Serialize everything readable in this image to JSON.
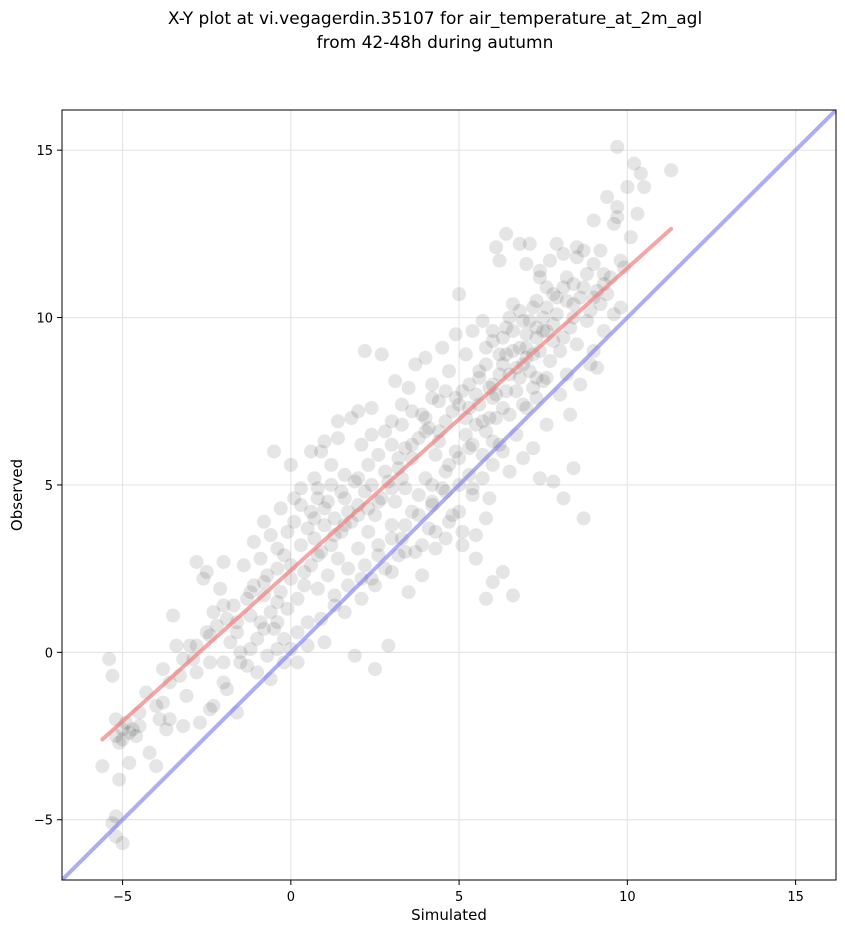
{
  "chart_data": {
    "type": "scatter",
    "title_line1": "X-Y plot at vi.vegagerdin.35107 for air_temperature_at_2m_agl",
    "title_line2": "from 42-48h during autumn",
    "xlabel": "Simulated",
    "ylabel": "Observed",
    "xlim": [
      -6.8,
      16.2
    ],
    "ylim": [
      -6.8,
      16.2
    ],
    "xticks": [
      -5,
      0,
      5,
      10,
      15
    ],
    "yticks": [
      -5,
      0,
      5,
      10,
      15
    ],
    "xtick_labels": [
      "−5",
      "0",
      "5",
      "10",
      "15"
    ],
    "ytick_labels": [
      "−5",
      "0",
      "5",
      "10",
      "15"
    ],
    "grid": true,
    "point_color": "#000000",
    "point_alpha": 0.1,
    "regression_line": {
      "color": "#f08080",
      "x": [
        -5.6,
        11.3
      ],
      "y": [
        -2.6,
        12.65
      ]
    },
    "identity_line": {
      "color": "#7777ee",
      "x": [
        -6.8,
        16.2
      ],
      "y": [
        -6.8,
        16.2
      ]
    },
    "points": [
      [
        -5.6,
        -3.4
      ],
      [
        -5.4,
        -0.2
      ],
      [
        -5.3,
        -0.7
      ],
      [
        -5.2,
        -2.0
      ],
      [
        -5.2,
        -2.5
      ],
      [
        -5.1,
        -2.7
      ],
      [
        -5.0,
        -2.3
      ],
      [
        -5.0,
        -2.6
      ],
      [
        -4.9,
        -2.1
      ],
      [
        -4.8,
        -2.4
      ],
      [
        -4.8,
        -3.3
      ],
      [
        -4.7,
        -2.3
      ],
      [
        -4.6,
        -2.5
      ],
      [
        -4.5,
        -2.2
      ],
      [
        -4.5,
        -1.8
      ],
      [
        -5.1,
        -3.8
      ],
      [
        -5.2,
        -4.9
      ],
      [
        -5.3,
        -5.1
      ],
      [
        -5.2,
        -5.5
      ],
      [
        -5.0,
        -5.7
      ],
      [
        -4.3,
        -1.2
      ],
      [
        -4.2,
        -3.0
      ],
      [
        -4.0,
        -3.4
      ],
      [
        -3.9,
        -2.0
      ],
      [
        -3.8,
        -0.5
      ],
      [
        -3.8,
        -1.5
      ],
      [
        -3.7,
        -2.3
      ],
      [
        -3.6,
        -2.0
      ],
      [
        -3.5,
        1.1
      ],
      [
        -3.4,
        0.2
      ],
      [
        -3.3,
        -0.7
      ],
      [
        -3.2,
        -2.2
      ],
      [
        -3.1,
        -1.3
      ],
      [
        -3.0,
        0.2
      ],
      [
        -2.9,
        -0.2
      ],
      [
        -2.8,
        2.7
      ],
      [
        -2.7,
        -2.1
      ],
      [
        -2.6,
        2.2
      ],
      [
        -2.5,
        2.4
      ],
      [
        -2.5,
        0.6
      ],
      [
        -2.4,
        -0.3
      ],
      [
        -2.3,
        1.2
      ],
      [
        -2.3,
        -1.6
      ],
      [
        -2.2,
        0.8
      ],
      [
        -2.1,
        1.9
      ],
      [
        -2.0,
        -0.9
      ],
      [
        -2.0,
        2.7
      ],
      [
        -1.9,
        1.0
      ],
      [
        -1.9,
        -1.1
      ],
      [
        -1.8,
        0.3
      ],
      [
        -1.7,
        1.4
      ],
      [
        -1.6,
        -1.8
      ],
      [
        -1.5,
        0.0
      ],
      [
        -1.5,
        -0.3
      ],
      [
        -1.4,
        2.6
      ],
      [
        -1.3,
        1.6
      ],
      [
        -1.3,
        -0.4
      ],
      [
        -1.2,
        1.1
      ],
      [
        -1.1,
        2.0
      ],
      [
        -1.1,
        3.3
      ],
      [
        -1.0,
        0.4
      ],
      [
        -1.0,
        -0.6
      ],
      [
        -0.9,
        2.8
      ],
      [
        -0.9,
        0.9
      ],
      [
        -0.8,
        3.9
      ],
      [
        -0.8,
        1.7
      ],
      [
        -0.7,
        2.3
      ],
      [
        -0.7,
        -0.1
      ],
      [
        -0.6,
        3.5
      ],
      [
        -0.6,
        1.2
      ],
      [
        -0.5,
        6.0
      ],
      [
        -0.5,
        0.7
      ],
      [
        -0.4,
        2.5
      ],
      [
        -0.4,
        3.1
      ],
      [
        -0.3,
        1.8
      ],
      [
        -0.3,
        4.3
      ],
      [
        -0.2,
        0.4
      ],
      [
        -0.2,
        2.9
      ],
      [
        -0.1,
        3.6
      ],
      [
        -0.1,
        1.3
      ],
      [
        0.0,
        5.6
      ],
      [
        0.0,
        0.1
      ],
      [
        0.0,
        2.2
      ],
      [
        0.1,
        4.6
      ],
      [
        0.1,
        3.9
      ],
      [
        0.2,
        1.6
      ],
      [
        0.2,
        -0.3
      ],
      [
        0.3,
        3.2
      ],
      [
        0.3,
        4.9
      ],
      [
        0.4,
        2.0
      ],
      [
        0.5,
        3.7
      ],
      [
        0.5,
        0.9
      ],
      [
        0.6,
        4.2
      ],
      [
        0.6,
        2.6
      ],
      [
        0.7,
        5.2
      ],
      [
        0.7,
        3.4
      ],
      [
        0.8,
        1.9
      ],
      [
        0.8,
        4.6
      ],
      [
        0.9,
        6.0
      ],
      [
        0.9,
        3.0
      ],
      [
        1.0,
        0.3
      ],
      [
        1.0,
        3.8
      ],
      [
        1.1,
        2.3
      ],
      [
        1.1,
        4.5
      ],
      [
        1.2,
        5.6
      ],
      [
        1.2,
        3.2
      ],
      [
        1.3,
        1.7
      ],
      [
        1.3,
        4.0
      ],
      [
        1.4,
        6.4
      ],
      [
        1.4,
        2.8
      ],
      [
        1.5,
        4.8
      ],
      [
        1.5,
        3.6
      ],
      [
        1.6,
        5.3
      ],
      [
        1.6,
        1.2
      ],
      [
        1.7,
        4.2
      ],
      [
        1.7,
        2.5
      ],
      [
        1.8,
        3.9
      ],
      [
        1.8,
        7.0
      ],
      [
        1.9,
        5.1
      ],
      [
        1.9,
        -0.1
      ],
      [
        2.0,
        4.4
      ],
      [
        2.0,
        3.1
      ],
      [
        2.1,
        6.2
      ],
      [
        2.1,
        1.6
      ],
      [
        2.2,
        4.8
      ],
      [
        2.2,
        9.0
      ],
      [
        2.3,
        3.6
      ],
      [
        2.3,
        5.6
      ],
      [
        2.4,
        2.2
      ],
      [
        2.4,
        7.3
      ],
      [
        2.5,
        4.1
      ],
      [
        2.5,
        -0.5
      ],
      [
        2.6,
        5.9
      ],
      [
        2.6,
        3.2
      ],
      [
        2.7,
        8.9
      ],
      [
        2.7,
        4.6
      ],
      [
        2.8,
        6.6
      ],
      [
        2.8,
        2.5
      ],
      [
        2.9,
        5.1
      ],
      [
        2.9,
        0.2
      ],
      [
        3.0,
        3.8
      ],
      [
        3.0,
        6.9
      ],
      [
        3.1,
        4.5
      ],
      [
        3.1,
        8.1
      ],
      [
        3.2,
        2.9
      ],
      [
        3.2,
        5.5
      ],
      [
        3.3,
        7.4
      ],
      [
        3.3,
        3.4
      ],
      [
        3.4,
        6.1
      ],
      [
        3.4,
        4.9
      ],
      [
        3.5,
        1.8
      ],
      [
        3.5,
        7.9
      ],
      [
        3.6,
        4.2
      ],
      [
        3.6,
        5.8
      ],
      [
        3.7,
        3.0
      ],
      [
        3.7,
        8.6
      ],
      [
        3.8,
        6.4
      ],
      [
        3.8,
        4.7
      ],
      [
        3.9,
        7.1
      ],
      [
        3.9,
        2.3
      ],
      [
        4.0,
        5.2
      ],
      [
        4.0,
        8.8
      ],
      [
        4.1,
        3.7
      ],
      [
        4.1,
        6.7
      ],
      [
        4.2,
        4.4
      ],
      [
        4.2,
        8.0
      ],
      [
        4.3,
        5.9
      ],
      [
        4.3,
        3.1
      ],
      [
        4.4,
        7.5
      ],
      [
        4.4,
        6.3
      ],
      [
        4.5,
        4.9
      ],
      [
        4.5,
        9.1
      ],
      [
        4.6,
        3.4
      ],
      [
        4.6,
        6.9
      ],
      [
        4.7,
        5.6
      ],
      [
        4.7,
        8.4
      ],
      [
        4.8,
        7.2
      ],
      [
        4.8,
        4.1
      ],
      [
        4.9,
        6.0
      ],
      [
        4.9,
        9.5
      ],
      [
        5.0,
        5.0
      ],
      [
        5.0,
        10.7
      ],
      [
        5.1,
        7.8
      ],
      [
        5.1,
        3.6
      ],
      [
        5.2,
        6.5
      ],
      [
        5.2,
        8.9
      ],
      [
        5.3,
        5.3
      ],
      [
        5.3,
        7.3
      ],
      [
        5.4,
        9.6
      ],
      [
        5.4,
        4.7
      ],
      [
        5.5,
        6.8
      ],
      [
        5.5,
        2.8
      ],
      [
        5.6,
        8.2
      ],
      [
        5.6,
        7.4
      ],
      [
        5.7,
        5.9
      ],
      [
        5.7,
        9.9
      ],
      [
        5.8,
        1.6
      ],
      [
        5.8,
        8.6
      ],
      [
        5.9,
        7.0
      ],
      [
        5.9,
        4.6
      ],
      [
        6.0,
        9.3
      ],
      [
        6.0,
        2.1
      ],
      [
        6.1,
        7.7
      ],
      [
        6.1,
        12.1
      ],
      [
        6.2,
        6.2
      ],
      [
        6.2,
        8.9
      ],
      [
        6.3,
        2.4
      ],
      [
        6.3,
        7.3
      ],
      [
        6.4,
        12.5
      ],
      [
        6.4,
        9.7
      ],
      [
        6.5,
        5.4
      ],
      [
        6.5,
        8.3
      ],
      [
        6.6,
        1.7
      ],
      [
        6.6,
        10.4
      ],
      [
        6.7,
        7.8
      ],
      [
        6.7,
        6.5
      ],
      [
        6.8,
        12.2
      ],
      [
        6.8,
        9.1
      ],
      [
        6.9,
        5.8
      ],
      [
        6.9,
        8.6
      ],
      [
        7.0,
        11.6
      ],
      [
        7.0,
        7.3
      ],
      [
        7.1,
        12.2
      ],
      [
        7.1,
        9.9
      ],
      [
        7.2,
        6.1
      ],
      [
        7.2,
        8.9
      ],
      [
        7.3,
        10.5
      ],
      [
        7.3,
        7.6
      ],
      [
        7.4,
        11.4
      ],
      [
        7.4,
        5.2
      ],
      [
        7.5,
        9.6
      ],
      [
        7.5,
        8.1
      ],
      [
        7.6,
        10.9
      ],
      [
        7.6,
        6.8
      ],
      [
        7.7,
        11.7
      ],
      [
        7.7,
        8.7
      ],
      [
        7.8,
        9.3
      ],
      [
        7.8,
        5.1
      ],
      [
        7.9,
        12.2
      ],
      [
        7.9,
        10.1
      ],
      [
        8.0,
        7.7
      ],
      [
        8.0,
        9.0
      ],
      [
        8.1,
        11.9
      ],
      [
        8.1,
        4.6
      ],
      [
        8.2,
        10.5
      ],
      [
        8.2,
        8.3
      ],
      [
        8.3,
        9.7
      ],
      [
        8.3,
        7.1
      ],
      [
        8.4,
        11.0
      ],
      [
        8.4,
        5.5
      ],
      [
        8.5,
        9.2
      ],
      [
        8.5,
        11.8
      ],
      [
        8.6,
        8.0
      ],
      [
        8.6,
        10.6
      ],
      [
        8.7,
        12.0
      ],
      [
        8.7,
        4.0
      ],
      [
        8.8,
        9.9
      ],
      [
        8.8,
        11.3
      ],
      [
        8.9,
        8.6
      ],
      [
        8.9,
        10.2
      ],
      [
        9.0,
        11.6
      ],
      [
        9.0,
        9.0
      ],
      [
        9.1,
        10.8
      ],
      [
        9.1,
        8.5
      ],
      [
        9.2,
        12.0
      ],
      [
        9.2,
        10.4
      ],
      [
        9.3,
        11.0
      ],
      [
        9.3,
        9.6
      ],
      [
        9.4,
        13.6
      ],
      [
        9.4,
        10.7
      ],
      [
        9.5,
        11.2
      ],
      [
        9.6,
        10.1
      ],
      [
        9.6,
        12.8
      ],
      [
        9.7,
        13.3
      ],
      [
        9.7,
        15.1
      ],
      [
        9.8,
        10.3
      ],
      [
        9.8,
        11.7
      ],
      [
        9.9,
        11.5
      ],
      [
        10.0,
        13.9
      ],
      [
        10.1,
        12.4
      ],
      [
        10.2,
        14.6
      ],
      [
        10.3,
        13.1
      ],
      [
        10.4,
        14.3
      ],
      [
        10.5,
        13.9
      ],
      [
        11.3,
        14.4
      ],
      [
        9.7,
        13.0
      ],
      [
        9.0,
        12.9
      ],
      [
        8.5,
        12.1
      ],
      [
        7.4,
        11.2
      ],
      [
        6.2,
        11.7
      ],
      [
        1.0,
        6.3
      ],
      [
        0.6,
        6.0
      ],
      [
        1.4,
        6.9
      ],
      [
        2.0,
        7.2
      ],
      [
        2.4,
        6.5
      ],
      [
        3.0,
        6.2
      ],
      [
        3.3,
        6.8
      ],
      [
        3.6,
        7.2
      ],
      [
        4.0,
        7.0
      ],
      [
        4.2,
        7.6
      ],
      [
        0.8,
        4.9
      ],
      [
        1.2,
        5.0
      ],
      [
        1.6,
        4.6
      ],
      [
        2.0,
        5.2
      ],
      [
        2.4,
        5.0
      ],
      [
        2.8,
        5.4
      ],
      [
        3.2,
        5.8
      ],
      [
        3.6,
        6.2
      ],
      [
        4.0,
        6.6
      ],
      [
        4.4,
        6.6
      ],
      [
        0.3,
        4.4
      ],
      [
        0.7,
        4.0
      ],
      [
        1.0,
        4.3
      ],
      [
        1.3,
        3.5
      ],
      [
        1.6,
        3.8
      ],
      [
        2.0,
        4.1
      ],
      [
        2.3,
        4.3
      ],
      [
        2.6,
        4.5
      ],
      [
        3.0,
        4.9
      ],
      [
        3.3,
        5.2
      ],
      [
        4.6,
        7.8
      ],
      [
        5.0,
        7.4
      ],
      [
        5.3,
        8.0
      ],
      [
        5.6,
        8.4
      ],
      [
        6.0,
        8.0
      ],
      [
        6.3,
        8.6
      ],
      [
        6.6,
        9.0
      ],
      [
        7.0,
        8.8
      ],
      [
        7.3,
        9.4
      ],
      [
        7.6,
        9.6
      ],
      [
        5.4,
        6.2
      ],
      [
        5.8,
        6.6
      ],
      [
        6.1,
        7.0
      ],
      [
        6.4,
        7.8
      ],
      [
        6.8,
        8.2
      ],
      [
        7.1,
        8.4
      ],
      [
        7.4,
        9.0
      ],
      [
        7.8,
        9.8
      ],
      [
        8.1,
        9.4
      ],
      [
        8.4,
        10.0
      ],
      [
        4.2,
        5.0
      ],
      [
        4.6,
        5.4
      ],
      [
        5.0,
        5.8
      ],
      [
        5.3,
        6.1
      ],
      [
        5.7,
        6.9
      ],
      [
        6.0,
        6.3
      ],
      [
        6.5,
        7.1
      ],
      [
        6.9,
        7.4
      ],
      [
        7.2,
        7.9
      ],
      [
        7.6,
        8.2
      ],
      [
        3.0,
        3.4
      ],
      [
        3.4,
        3.8
      ],
      [
        3.8,
        4.1
      ],
      [
        4.2,
        4.5
      ],
      [
        4.6,
        4.8
      ],
      [
        5.0,
        4.2
      ],
      [
        5.4,
        4.9
      ],
      [
        5.7,
        5.2
      ],
      [
        6.0,
        5.6
      ],
      [
        6.3,
        6.0
      ],
      [
        2.2,
        2.6
      ],
      [
        2.6,
        2.9
      ],
      [
        3.0,
        2.4
      ],
      [
        3.4,
        3.0
      ],
      [
        3.9,
        3.2
      ],
      [
        4.3,
        3.6
      ],
      [
        4.7,
        3.9
      ],
      [
        5.1,
        3.2
      ],
      [
        5.5,
        3.5
      ],
      [
        5.8,
        4.0
      ],
      [
        -0.6,
        -0.8
      ],
      [
        -0.4,
        0.1
      ],
      [
        -0.2,
        -0.3
      ],
      [
        0.2,
        0.6
      ],
      [
        0.5,
        0.2
      ],
      [
        0.9,
        1.0
      ],
      [
        1.3,
        1.4
      ],
      [
        1.7,
        2.0
      ],
      [
        2.1,
        2.2
      ],
      [
        2.5,
        2.0
      ],
      [
        -2.8,
        0.2
      ],
      [
        -2.4,
        0.5
      ],
      [
        -2.0,
        1.4
      ],
      [
        -1.6,
        0.9
      ],
      [
        -1.2,
        1.8
      ],
      [
        -0.8,
        2.1
      ],
      [
        -0.4,
        1.5
      ],
      [
        0.0,
        2.6
      ],
      [
        0.4,
        2.4
      ],
      [
        0.8,
        2.9
      ],
      [
        -4.0,
        -1.6
      ],
      [
        -3.6,
        -0.9
      ],
      [
        -3.2,
        -0.2
      ],
      [
        -2.8,
        -0.6
      ],
      [
        -2.4,
        -1.7
      ],
      [
        -2.0,
        -0.3
      ],
      [
        -1.6,
        0.6
      ],
      [
        -1.2,
        0.1
      ],
      [
        -0.8,
        0.7
      ],
      [
        -0.4,
        0.9
      ],
      [
        6.6,
        9.6
      ],
      [
        6.9,
        9.9
      ],
      [
        7.2,
        10.3
      ],
      [
        7.5,
        10.0
      ],
      [
        7.8,
        10.7
      ],
      [
        8.1,
        10.9
      ],
      [
        8.4,
        10.4
      ],
      [
        8.7,
        10.9
      ],
      [
        9.0,
        10.6
      ],
      [
        9.3,
        11.3
      ],
      [
        5.8,
        9.1
      ],
      [
        6.0,
        9.6
      ],
      [
        6.3,
        9.4
      ],
      [
        6.5,
        10.0
      ],
      [
        6.8,
        10.2
      ],
      [
        7.0,
        9.5
      ],
      [
        7.3,
        9.7
      ],
      [
        7.6,
        10.3
      ],
      [
        7.9,
        10.6
      ],
      [
        8.2,
        11.2
      ],
      [
        5.9,
        7.9
      ],
      [
        6.2,
        8.3
      ],
      [
        6.4,
        8.9
      ],
      [
        6.7,
        8.5
      ],
      [
        7.0,
        9.1
      ],
      [
        7.3,
        8.2
      ],
      [
        6.0,
        7.6
      ],
      [
        5.5,
        7.7
      ],
      [
        5.2,
        7.0
      ],
      [
        4.9,
        7.6
      ]
    ]
  }
}
